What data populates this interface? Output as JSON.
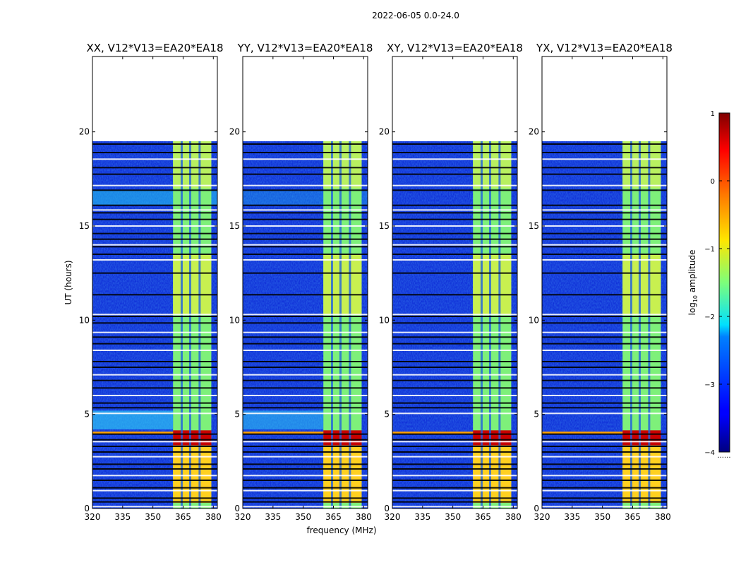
{
  "chart_data": {
    "type": "heatmap",
    "suptitle": "2022-06-05 0.0-24.0",
    "xlabel": "frequency (MHz)",
    "ylabel": "UT (hours)",
    "xlim": [
      320,
      382
    ],
    "ylim": [
      0,
      24
    ],
    "xticks": [
      320,
      335,
      350,
      365,
      380
    ],
    "yticks": [
      0,
      5,
      10,
      15,
      20
    ],
    "data_end_hour": 19.5,
    "rfi_band_mhz": [
      360,
      379
    ],
    "rfi_subband_gaps_mhz": [
      364.3,
      368.5,
      373.2
    ],
    "panels": [
      {
        "name": "XX",
        "title": "XX, V12*V13=EA20*EA18"
      },
      {
        "name": "YY",
        "title": "YY, V12*V13=EA20*EA18"
      },
      {
        "name": "XY",
        "title": "XY, V12*V13=EA20*EA18"
      },
      {
        "name": "YX",
        "title": "YX, V12*V13=EA20*EA18"
      }
    ],
    "flagged_gaps_hours": [
      0.1,
      0.35,
      0.55,
      0.95,
      1.1,
      1.5,
      1.75,
      2.1,
      2.35,
      2.75,
      3.0,
      3.3,
      3.55,
      3.65,
      3.95,
      5.05,
      5.35,
      5.6,
      6.0,
      6.4,
      6.8,
      7.1,
      7.5,
      7.8,
      8.4,
      8.75,
      9.1,
      9.35,
      9.85,
      10.2,
      10.3,
      11.35,
      12.5,
      13.2,
      13.5,
      13.9,
      14.0,
      14.3,
      14.6,
      15.0,
      15.35,
      15.7,
      15.85,
      16.1,
      16.9,
      17.15,
      17.75,
      18.1,
      18.55,
      18.9,
      19.35
    ],
    "colorbar": {
      "label": "log10 amplitude",
      "label_prefix": "log",
      "label_sub": "10",
      "label_suffix": " amplitude",
      "range": [
        -4,
        1
      ],
      "ticks": [
        1,
        0,
        -1,
        -2,
        -3,
        -4
      ],
      "tick_labels": [
        "1",
        "0",
        "−1",
        "−2",
        "−3",
        "−4"
      ],
      "colormap": "jet",
      "footer": "......"
    }
  }
}
